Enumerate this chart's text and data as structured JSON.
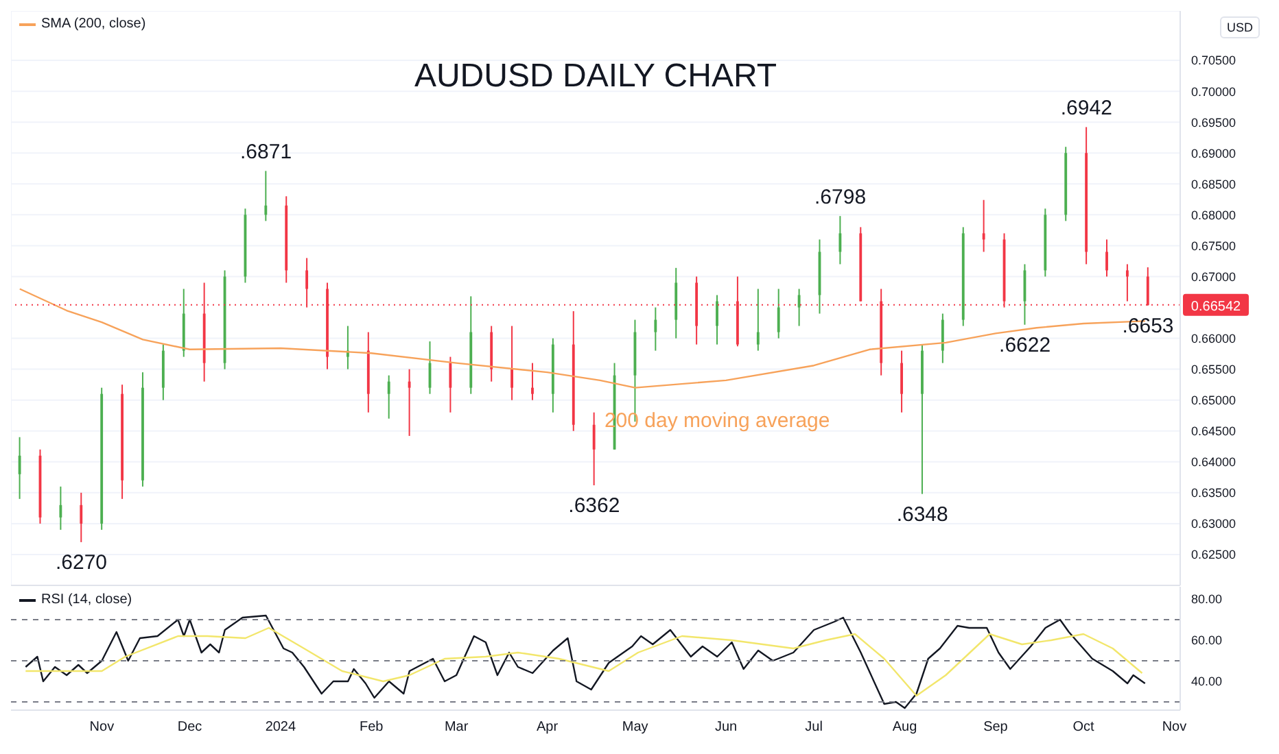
{
  "chart_data": [
    {
      "type": "candlestick",
      "title": "AUDUSD DAILY CHART",
      "x": [
        "2023-10-04",
        "2023-10-11",
        "2023-10-18",
        "2023-10-25",
        "2023-11-01",
        "2023-11-08",
        "2023-11-15",
        "2023-11-22",
        "2023-11-29",
        "2023-12-06",
        "2023-12-13",
        "2023-12-20",
        "2023-12-27",
        "2024-01-03",
        "2024-01-10",
        "2024-01-17",
        "2024-01-24",
        "2024-01-31",
        "2024-02-07",
        "2024-02-14",
        "2024-02-21",
        "2024-02-28",
        "2024-03-06",
        "2024-03-13",
        "2024-03-20",
        "2024-03-27",
        "2024-04-03",
        "2024-04-10",
        "2024-04-17",
        "2024-04-24",
        "2024-05-01",
        "2024-05-08",
        "2024-05-15",
        "2024-05-22",
        "2024-05-29",
        "2024-06-05",
        "2024-06-12",
        "2024-06-19",
        "2024-06-26",
        "2024-07-03",
        "2024-07-10",
        "2024-07-17",
        "2024-07-24",
        "2024-07-31",
        "2024-08-07",
        "2024-08-14",
        "2024-08-21",
        "2024-08-28",
        "2024-09-04",
        "2024-09-11",
        "2024-09-18",
        "2024-09-25",
        "2024-10-02",
        "2024-10-09",
        "2024-10-16",
        "2024-10-23"
      ],
      "ohlc": [
        [
          0.638,
          0.644,
          0.634,
          0.641
        ],
        [
          0.641,
          0.642,
          0.63,
          0.631
        ],
        [
          0.631,
          0.636,
          0.629,
          0.633
        ],
        [
          0.633,
          0.635,
          0.627,
          0.63
        ],
        [
          0.63,
          0.652,
          0.629,
          0.651
        ],
        [
          0.651,
          0.6525,
          0.634,
          0.637
        ],
        [
          0.637,
          0.6545,
          0.636,
          0.652
        ],
        [
          0.652,
          0.659,
          0.65,
          0.658
        ],
        [
          0.658,
          0.668,
          0.657,
          0.664
        ],
        [
          0.664,
          0.669,
          0.653,
          0.656
        ],
        [
          0.656,
          0.671,
          0.655,
          0.67
        ],
        [
          0.67,
          0.681,
          0.669,
          0.68
        ],
        [
          0.68,
          0.6871,
          0.679,
          0.6815
        ],
        [
          0.6815,
          0.683,
          0.669,
          0.671
        ],
        [
          0.671,
          0.673,
          0.665,
          0.668
        ],
        [
          0.668,
          0.669,
          0.655,
          0.657
        ],
        [
          0.657,
          0.662,
          0.655,
          0.658
        ],
        [
          0.658,
          0.661,
          0.648,
          0.651
        ],
        [
          0.651,
          0.654,
          0.647,
          0.653
        ],
        [
          0.653,
          0.655,
          0.6442,
          0.652
        ],
        [
          0.652,
          0.6595,
          0.651,
          0.656
        ],
        [
          0.656,
          0.657,
          0.648,
          0.652
        ],
        [
          0.652,
          0.6668,
          0.651,
          0.661
        ],
        [
          0.661,
          0.662,
          0.653,
          0.655
        ],
        [
          0.655,
          0.662,
          0.65,
          0.652
        ],
        [
          0.652,
          0.656,
          0.65,
          0.651
        ],
        [
          0.651,
          0.66,
          0.648,
          0.659
        ],
        [
          0.659,
          0.6644,
          0.645,
          0.646
        ],
        [
          0.646,
          0.648,
          0.6362,
          0.642
        ],
        [
          0.642,
          0.656,
          0.642,
          0.654
        ],
        [
          0.654,
          0.663,
          0.6465,
          0.661
        ],
        [
          0.661,
          0.665,
          0.658,
          0.663
        ],
        [
          0.663,
          0.6714,
          0.66,
          0.669
        ],
        [
          0.669,
          0.67,
          0.659,
          0.662
        ],
        [
          0.662,
          0.667,
          0.659,
          0.666
        ],
        [
          0.666,
          0.67,
          0.6587,
          0.659
        ],
        [
          0.659,
          0.668,
          0.658,
          0.661
        ],
        [
          0.661,
          0.668,
          0.66,
          0.665
        ],
        [
          0.665,
          0.668,
          0.662,
          0.667
        ],
        [
          0.667,
          0.676,
          0.664,
          0.674
        ],
        [
          0.674,
          0.6798,
          0.672,
          0.677
        ],
        [
          0.677,
          0.678,
          0.666,
          0.666
        ],
        [
          0.666,
          0.668,
          0.654,
          0.656
        ],
        [
          0.656,
          0.658,
          0.648,
          0.651
        ],
        [
          0.651,
          0.659,
          0.6348,
          0.658
        ],
        [
          0.658,
          0.664,
          0.656,
          0.663
        ],
        [
          0.663,
          0.678,
          0.662,
          0.677
        ],
        [
          0.677,
          0.6824,
          0.674,
          0.676
        ],
        [
          0.676,
          0.677,
          0.665,
          0.666
        ],
        [
          0.666,
          0.672,
          0.6622,
          0.671
        ],
        [
          0.671,
          0.681,
          0.67,
          0.68
        ],
        [
          0.68,
          0.691,
          0.679,
          0.69
        ],
        [
          0.69,
          0.6942,
          0.672,
          0.674
        ],
        [
          0.674,
          0.676,
          0.67,
          0.671
        ],
        [
          0.671,
          0.672,
          0.666,
          0.67
        ],
        [
          0.67,
          0.6715,
          0.6653,
          0.6654
        ]
      ],
      "colors": [
        "#4caf50",
        "#f23645",
        "#4caf50",
        "#f23645",
        "#4caf50",
        "#f23645",
        "#4caf50",
        "#4caf50",
        "#4caf50",
        "#f23645",
        "#4caf50",
        "#4caf50",
        "#4caf50",
        "#f23645",
        "#f23645",
        "#f23645",
        "#4caf50",
        "#f23645",
        "#4caf50",
        "#f23645",
        "#4caf50",
        "#f23645",
        "#4caf50",
        "#f23645",
        "#f23645",
        "#f23645",
        "#4caf50",
        "#f23645",
        "#f23645",
        "#4caf50",
        "#4caf50",
        "#4caf50",
        "#4caf50",
        "#f23645",
        "#4caf50",
        "#f23645",
        "#4caf50",
        "#4caf50",
        "#4caf50",
        "#4caf50",
        "#4caf50",
        "#f23645",
        "#f23645",
        "#f23645",
        "#4caf50",
        "#4caf50",
        "#4caf50",
        "#f23645",
        "#f23645",
        "#4caf50",
        "#4caf50",
        "#4caf50",
        "#f23645",
        "#f23645",
        "#f23645",
        "#f23645"
      ],
      "series": [
        {
          "type": "line",
          "name": "SMA (200, close)",
          "color": "#f7a25a",
          "x": [
            "2023-10-04",
            "2023-10-20",
            "2023-11-01",
            "2023-11-15",
            "2023-12-01",
            "2024-01-01",
            "2024-02-01",
            "2024-03-01",
            "2024-04-01",
            "2024-04-19",
            "2024-05-01",
            "2024-06-01",
            "2024-07-01",
            "2024-07-20",
            "2024-08-15",
            "2024-09-01",
            "2024-09-15",
            "2024-10-01",
            "2024-10-22"
          ],
          "values": [
            0.668,
            0.6645,
            0.6626,
            0.6598,
            0.6582,
            0.6584,
            0.6576,
            0.656,
            0.6545,
            0.6532,
            0.652,
            0.6532,
            0.6556,
            0.6582,
            0.6593,
            0.6608,
            0.6617,
            0.6624,
            0.6628
          ]
        }
      ],
      "xlim": [
        "2023-10-01",
        "2024-11-03"
      ],
      "ylim": [
        0.62,
        0.713
      ],
      "xticks": [
        {
          "value": "2023-11-01",
          "label": null
        },
        {
          "value": "2023-12-01",
          "label": null
        },
        {
          "value": "2024-01-01",
          "label": null
        },
        {
          "value": "2024-02-01",
          "label": null
        },
        {
          "value": "2024-03-01",
          "label": null
        },
        {
          "value": "2024-04-01",
          "label": null
        },
        {
          "value": "2024-05-01",
          "label": null
        },
        {
          "value": "2024-06-01",
          "label": null
        },
        {
          "value": "2024-07-01",
          "label": null
        },
        {
          "value": "2024-08-01",
          "label": null
        },
        {
          "value": "2024-09-01",
          "label": null
        },
        {
          "value": "2024-10-01",
          "label": null
        },
        {
          "value": "2024-11-01",
          "label": null
        }
      ],
      "yticks": [
        {
          "value": 0.625,
          "label": "0.62500"
        },
        {
          "value": 0.63,
          "label": "0.63000"
        },
        {
          "value": 0.635,
          "label": "0.63500"
        },
        {
          "value": 0.64,
          "label": "0.64000"
        },
        {
          "value": 0.645,
          "label": "0.64500"
        },
        {
          "value": 0.65,
          "label": "0.65000"
        },
        {
          "value": 0.655,
          "label": "0.65500"
        },
        {
          "value": 0.66,
          "label": "0.66000"
        },
        {
          "value": 0.67,
          "label": "0.67000"
        },
        {
          "value": 0.675,
          "label": "0.67500"
        },
        {
          "value": 0.68,
          "label": "0.68000"
        },
        {
          "value": 0.685,
          "label": "0.68500"
        },
        {
          "value": 0.69,
          "label": "0.69000"
        },
        {
          "value": 0.695,
          "label": "0.69500"
        },
        {
          "value": 0.7,
          "label": "0.70000"
        },
        {
          "value": 0.705,
          "label": "0.70500"
        }
      ],
      "ref_lines": [
        {
          "axis": "y",
          "value": 0.66542,
          "label": "0.66542",
          "color": "#f23645",
          "line_style": "dotted"
        }
      ],
      "grid": true,
      "legend": "top left",
      "tick_labels": "y",
      "annotations": [
        {
          "text": ".6270",
          "x": "2023-10-25",
          "y": 0.627
        },
        {
          "text": ".6871",
          "x": "2023-12-27",
          "y": 0.6871
        },
        {
          "text": ".6362",
          "x": "2024-04-17",
          "y": 0.6362
        },
        {
          "text": ".6798",
          "x": "2024-07-10",
          "y": 0.6798
        },
        {
          "text": ".6348",
          "x": "2024-08-07",
          "y": 0.6348
        },
        {
          "text": ".6622",
          "x": "2024-09-11",
          "y": 0.6622
        },
        {
          "text": ".6942",
          "x": "2024-10-02",
          "y": 0.6942
        },
        {
          "text": ".6653",
          "x": "2024-10-23",
          "y": 0.6653
        },
        {
          "text": "200 day moving average",
          "x": "2024-05-29",
          "y": 0.6531
        },
        "USD"
      ]
    },
    {
      "type": "line",
      "legend": "top left",
      "series": [
        {
          "name": "RSI (14, close)",
          "color": "#131722",
          "x": [
            "2023-10-06",
            "2023-10-10",
            "2023-10-12",
            "2023-10-16",
            "2023-10-20",
            "2023-10-24",
            "2023-10-27",
            "2023-11-01",
            "2023-11-06",
            "2023-11-10",
            "2023-11-14",
            "2023-11-20",
            "2023-11-27",
            "2023-11-29",
            "2023-12-01",
            "2023-12-05",
            "2023-12-08",
            "2023-12-11",
            "2023-12-13",
            "2023-12-19",
            "2023-12-27",
            "2024-01-02",
            "2024-01-05",
            "2024-01-09",
            "2024-01-15",
            "2024-01-19",
            "2024-01-24",
            "2024-01-26",
            "2024-01-30",
            "2024-02-02",
            "2024-02-07",
            "2024-02-12",
            "2024-02-14",
            "2024-02-22",
            "2024-02-26",
            "2024-03-01",
            "2024-03-07",
            "2024-03-11",
            "2024-03-15",
            "2024-03-19",
            "2024-03-22",
            "2024-03-27",
            "2024-04-03",
            "2024-04-08",
            "2024-04-11",
            "2024-04-16",
            "2024-04-22",
            "2024-04-30",
            "2024-05-03",
            "2024-05-07",
            "2024-05-13",
            "2024-05-20",
            "2024-05-24",
            "2024-05-29",
            "2024-06-03",
            "2024-06-07",
            "2024-06-12",
            "2024-06-17",
            "2024-06-24",
            "2024-07-01",
            "2024-07-08",
            "2024-07-11",
            "2024-07-17",
            "2024-07-25",
            "2024-07-29",
            "2024-08-01",
            "2024-08-05",
            "2024-08-09",
            "2024-08-13",
            "2024-08-19",
            "2024-08-23",
            "2024-08-29",
            "2024-09-02",
            "2024-09-06",
            "2024-09-13",
            "2024-09-18",
            "2024-09-23",
            "2024-09-26",
            "2024-10-04",
            "2024-10-11",
            "2024-10-16",
            "2024-10-18",
            "2024-10-22"
          ],
          "values": [
            47,
            52,
            40,
            47,
            43,
            48,
            44,
            50,
            64,
            50,
            61,
            62,
            70,
            62,
            70,
            54,
            58,
            54,
            65,
            71,
            72,
            56,
            54,
            47,
            34,
            40,
            40,
            46,
            39,
            32,
            40,
            34,
            45,
            51,
            40,
            43,
            62,
            59,
            43,
            54,
            47,
            44,
            55,
            61,
            40,
            36,
            49,
            57,
            62,
            58,
            65,
            52,
            57,
            52,
            59,
            46,
            55,
            50,
            54,
            65,
            69,
            71,
            54,
            29,
            30,
            27,
            34,
            51,
            56,
            67,
            66,
            66,
            54,
            46,
            57,
            66,
            70,
            64,
            51,
            45,
            39,
            43,
            39
          ]
        },
        {
          "color": "#f2e66b",
          "x": [
            "2023-10-06",
            "2023-11-01",
            "2023-11-09",
            "2023-11-27",
            "2023-12-07",
            "2023-12-20",
            "2023-12-28",
            "2024-01-09",
            "2024-01-22",
            "2024-02-05",
            "2024-02-14",
            "2024-02-26",
            "2024-03-11",
            "2024-03-22",
            "2024-04-05",
            "2024-04-22",
            "2024-05-02",
            "2024-05-17",
            "2024-06-03",
            "2024-06-24",
            "2024-07-05",
            "2024-07-15",
            "2024-07-25",
            "2024-08-05",
            "2024-08-15",
            "2024-08-30",
            "2024-09-10",
            "2024-09-20",
            "2024-10-01",
            "2024-10-11",
            "2024-10-21"
          ],
          "values": [
            45,
            45,
            52,
            62,
            62,
            61,
            66,
            56,
            45,
            40,
            43,
            51,
            52,
            54,
            51,
            45,
            54,
            62,
            60,
            56,
            60,
            63,
            51,
            33,
            43,
            63,
            58,
            60,
            63,
            56,
            44
          ]
        }
      ],
      "xlim": [
        "2023-10-01",
        "2024-11-03"
      ],
      "ylim": [
        26,
        86
      ],
      "xticks": [
        {
          "value": "2023-11-01",
          "label": "Nov"
        },
        {
          "value": "2023-12-01",
          "label": "Dec"
        },
        {
          "value": "2024-01-01",
          "label": "2024"
        },
        {
          "value": "2024-02-01",
          "label": "Feb"
        },
        {
          "value": "2024-03-01",
          "label": "Mar"
        },
        {
          "value": "2024-04-01",
          "label": "Apr"
        },
        {
          "value": "2024-05-01",
          "label": "May"
        },
        {
          "value": "2024-06-01",
          "label": "Jun"
        },
        {
          "value": "2024-07-01",
          "label": "Jul"
        },
        {
          "value": "2024-08-01",
          "label": "Aug"
        },
        {
          "value": "2024-09-01",
          "label": "Sep"
        },
        {
          "value": "2024-10-01",
          "label": "Oct"
        },
        {
          "value": "2024-11-01",
          "label": "Nov"
        }
      ],
      "yticks": [
        {
          "value": 40,
          "label": "40.00"
        },
        {
          "value": 60,
          "label": "60.00"
        },
        {
          "value": 80,
          "label": "80.00"
        }
      ],
      "ref_lines": [
        {
          "axis": "y",
          "value": 70,
          "line_style": "dashed",
          "color": "#787b86"
        },
        {
          "axis": "y",
          "value": 50,
          "line_style": "dashed",
          "color": "#787b86"
        },
        {
          "axis": "y",
          "value": 30,
          "line_style": "dashed",
          "color": "#787b86"
        }
      ]
    }
  ]
}
